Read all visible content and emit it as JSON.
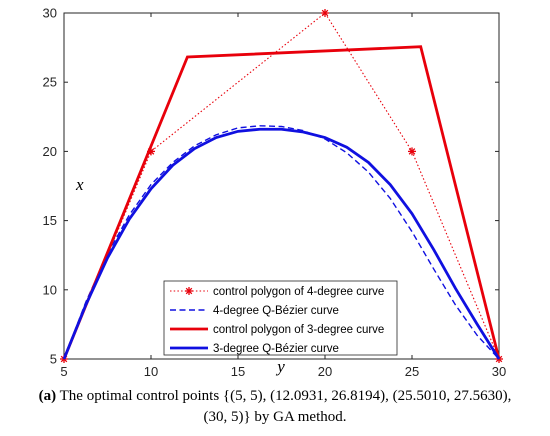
{
  "chart_data": {
    "type": "line",
    "xlabel": "y",
    "ylabel": "x",
    "xlim": [
      5,
      30
    ],
    "ylim": [
      5,
      30
    ],
    "xticks": [
      5,
      10,
      15,
      20,
      25,
      30
    ],
    "yticks": [
      5,
      10,
      15,
      20,
      25,
      30
    ],
    "grid": false,
    "legend_position": "lower-center",
    "series": [
      {
        "name": "control polygon of 4-degree curve",
        "style": "dotted-star",
        "color": "#e8000b",
        "x": [
          5,
          10,
          20,
          25,
          30
        ],
        "y": [
          5,
          20,
          30,
          20,
          5
        ]
      },
      {
        "name": "4-degree Q-Bézier curve",
        "style": "dashed",
        "color": "#1010e0",
        "x": [
          5,
          6.25,
          7.5,
          8.75,
          10,
          11.25,
          12.5,
          13.75,
          15,
          16.25,
          17.5,
          18.75,
          20,
          21.25,
          22.5,
          23.75,
          25,
          26.25,
          27.5,
          28.75,
          30
        ],
        "y": [
          5,
          9.1,
          12.6,
          15.4,
          17.6,
          19.2,
          20.4,
          21.2,
          21.7,
          21.85,
          21.8,
          21.5,
          20.9,
          19.9,
          18.5,
          16.6,
          14.2,
          11.5,
          8.9,
          6.7,
          5
        ]
      },
      {
        "name": "control polygon of 3-degree curve",
        "style": "solid",
        "color": "#e8000b",
        "x": [
          5,
          12.0931,
          25.501,
          30
        ],
        "y": [
          5,
          26.8194,
          27.563,
          5
        ]
      },
      {
        "name": "3-degree Q-Bézier curve",
        "style": "solid",
        "color": "#1010e0",
        "x": [
          5,
          6.25,
          7.5,
          8.75,
          10,
          11.25,
          12.5,
          13.75,
          15,
          16.25,
          17.5,
          18.75,
          20,
          21.25,
          22.5,
          23.75,
          25,
          26.25,
          27.5,
          28.75,
          30
        ],
        "y": [
          5,
          8.9,
          12.3,
          15.1,
          17.3,
          19.0,
          20.2,
          21.0,
          21.45,
          21.6,
          21.6,
          21.4,
          21.0,
          20.3,
          19.2,
          17.6,
          15.5,
          12.9,
          10.1,
          7.5,
          5
        ]
      }
    ]
  },
  "caption": {
    "label": "(a)",
    "line1": " The optimal control points {(5, 5), (12.0931, 26.8194), (25.5010, 27.5630),",
    "line2": "(30, 5)} by GA method."
  }
}
